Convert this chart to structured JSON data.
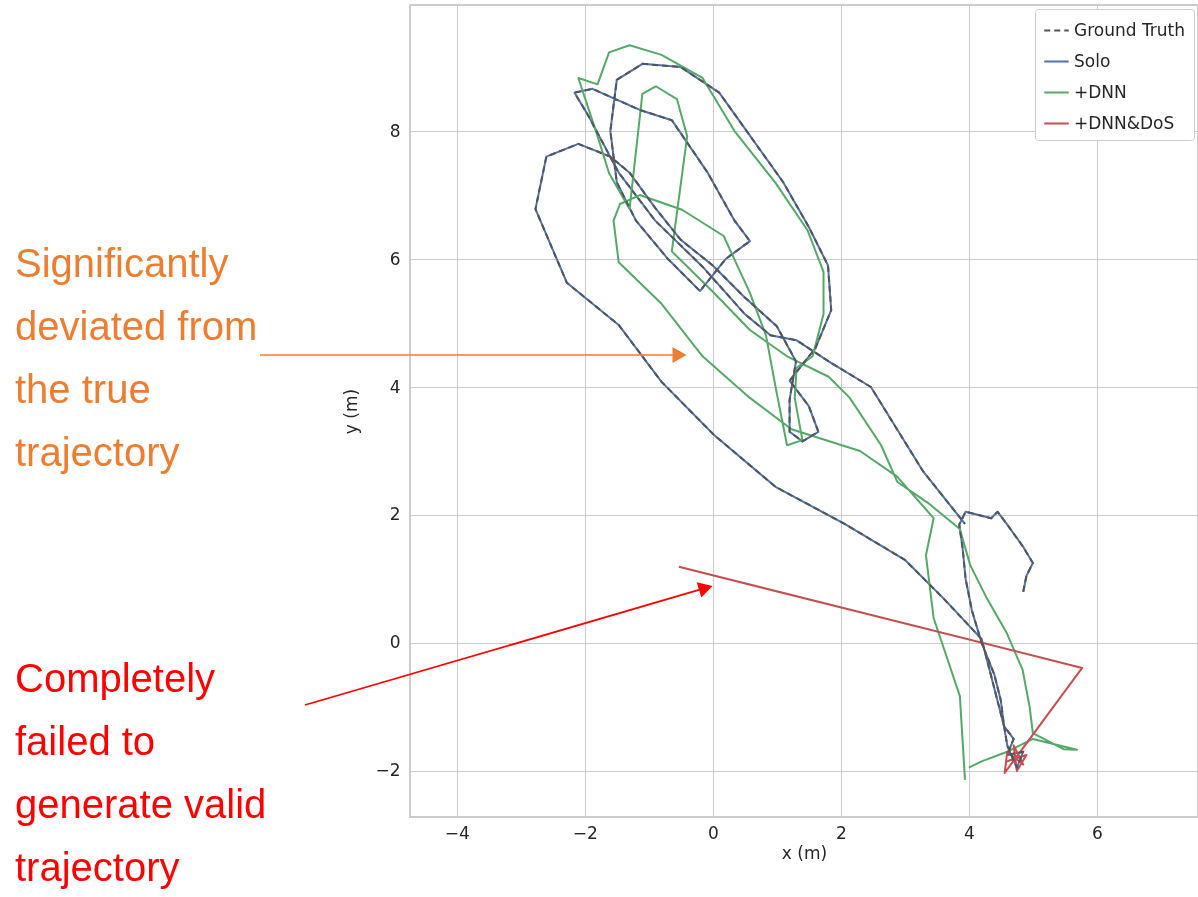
{
  "chart_data": {
    "type": "line",
    "xlabel": "x (m)",
    "ylabel": "y (m)",
    "xlim": [
      -4.73,
      7.58
    ],
    "ylim": [
      -2.72,
      9.97
    ],
    "xticks": [
      {
        "value": -4,
        "label": "−4"
      },
      {
        "value": -2,
        "label": "−2"
      },
      0,
      2,
      4,
      6
    ],
    "yticks": [
      {
        "value": -2,
        "label": "−2"
      },
      0,
      2,
      4,
      6,
      8
    ],
    "grid": true,
    "legend": "top right",
    "annotations": [
      {
        "text": "Significantly deviated from the true trajectory",
        "x": -0.52,
        "y": 4.5
      },
      {
        "text": "Completely failed to generate valid trajectory",
        "x": -0.11,
        "y": 0.86
      }
    ],
    "series": [
      {
        "name": "Ground Truth",
        "color": "#555555",
        "line_style": "dashed",
        "x": [
          4.85,
          4.9,
          5.0,
          4.85,
          4.6,
          4.45,
          4.35,
          4.15,
          3.95,
          3.85,
          3.9,
          3.95,
          4.05,
          4.2,
          4.4,
          4.5,
          4.55,
          4.6,
          4.75,
          4.85,
          4.6,
          4.7,
          4.55,
          4.2,
          3.6,
          3.0,
          2.06,
          0.98,
          0.02,
          -0.8,
          -1.47,
          -2.28,
          -2.77,
          -2.6,
          -2.1,
          -1.6,
          -1.3,
          -0.9,
          -0.5,
          0.0,
          0.5,
          1.0,
          1.3,
          1.2,
          1.2,
          1.4,
          1.65,
          1.5,
          1.2,
          1.6,
          1.85,
          1.8,
          1.5,
          1.1,
          0.6,
          0.1,
          -0.5,
          -1.1,
          -1.5,
          -1.6,
          -1.5,
          -1.2,
          -0.7,
          -0.2,
          0.2,
          0.58,
          0.34,
          -0.08,
          -0.64,
          -1.14,
          -1.88,
          -2.16,
          -1.95,
          -1.47,
          -0.9,
          -0.16,
          0.5,
          0.9,
          1.31,
          1.81,
          2.47,
          3.28,
          3.94
        ],
        "values": [
          0.8,
          1.05,
          1.25,
          1.5,
          1.85,
          2.05,
          1.95,
          2.0,
          2.05,
          1.85,
          1.5,
          1.0,
          0.5,
          0.0,
          -0.5,
          -0.9,
          -1.3,
          -1.6,
          -1.95,
          -1.7,
          -1.75,
          -1.5,
          -1.3,
          0.06,
          0.7,
          1.3,
          1.86,
          2.44,
          3.25,
          4.08,
          4.97,
          5.63,
          6.78,
          7.6,
          7.8,
          7.6,
          7.35,
          6.8,
          6.3,
          5.9,
          5.4,
          4.95,
          4.4,
          3.8,
          3.3,
          3.15,
          3.3,
          3.7,
          4.1,
          4.6,
          5.2,
          5.9,
          6.5,
          7.2,
          7.9,
          8.6,
          9.0,
          9.05,
          8.8,
          8.0,
          7.2,
          6.6,
          6.0,
          5.5,
          6.0,
          6.28,
          6.6,
          7.35,
          8.17,
          8.33,
          8.66,
          8.6,
          8.25,
          7.35,
          6.6,
          5.88,
          5.14,
          4.81,
          4.73,
          4.4,
          4.0,
          2.69,
          1.86
        ]
      },
      {
        "name": "Solo",
        "color": "#4c72b0",
        "line_style": "solid",
        "x": [
          4.85,
          4.9,
          5.0,
          4.85,
          4.6,
          4.45,
          4.35,
          4.15,
          3.95,
          3.85,
          3.9,
          3.95,
          4.05,
          4.2,
          4.4,
          4.5,
          4.55,
          4.6,
          4.75,
          4.85,
          4.6,
          4.7,
          4.55,
          4.2,
          3.6,
          3.0,
          2.06,
          0.98,
          0.02,
          -0.8,
          -1.47,
          -2.28,
          -2.77,
          -2.6,
          -2.1,
          -1.6,
          -1.3,
          -0.9,
          -0.5,
          0.0,
          0.5,
          1.0,
          1.3,
          1.2,
          1.2,
          1.4,
          1.65,
          1.5,
          1.2,
          1.6,
          1.85,
          1.8,
          1.5,
          1.1,
          0.6,
          0.1,
          -0.5,
          -1.1,
          -1.5,
          -1.6,
          -1.5,
          -1.2,
          -0.7,
          -0.2,
          0.2,
          0.58,
          0.34,
          -0.08,
          -0.64,
          -1.14,
          -1.88,
          -2.16,
          -1.95,
          -1.47,
          -0.9,
          -0.16,
          0.5,
          0.9,
          1.31,
          1.81,
          2.47,
          3.28,
          3.94
        ],
        "values": [
          0.8,
          1.05,
          1.25,
          1.5,
          1.85,
          2.05,
          1.95,
          2.0,
          2.05,
          1.85,
          1.5,
          1.0,
          0.5,
          0.0,
          -0.5,
          -0.9,
          -1.3,
          -1.6,
          -1.95,
          -1.7,
          -1.75,
          -1.5,
          -1.3,
          0.06,
          0.7,
          1.3,
          1.86,
          2.44,
          3.25,
          4.08,
          4.97,
          5.63,
          6.78,
          7.6,
          7.8,
          7.6,
          7.35,
          6.8,
          6.3,
          5.9,
          5.4,
          4.95,
          4.4,
          3.8,
          3.3,
          3.15,
          3.3,
          3.7,
          4.1,
          4.6,
          5.2,
          5.9,
          6.5,
          7.2,
          7.9,
          8.6,
          9.0,
          9.05,
          8.8,
          8.0,
          7.2,
          6.6,
          6.0,
          5.5,
          6.0,
          6.28,
          6.6,
          7.35,
          8.17,
          8.33,
          8.66,
          8.6,
          8.25,
          7.35,
          6.6,
          5.88,
          5.14,
          4.81,
          4.73,
          4.4,
          4.0,
          2.69,
          1.86
        ]
      },
      {
        "name": "+DNN",
        "color": "#55a868",
        "line_style": "solid",
        "x": [
          3.94,
          3.86,
          3.45,
          3.33,
          3.45,
          2.88,
          2.3,
          1.23,
          0.58,
          -0.16,
          -0.8,
          -1.47,
          -1.55,
          -1.45,
          -1.14,
          -0.48,
          0.17,
          0.58,
          0.83,
          1.0,
          1.16,
          1.4,
          1.28,
          1.31,
          1.56,
          1.73,
          1.73,
          1.48,
          0.98,
          0.34,
          -0.16,
          -0.8,
          -1.3,
          -1.62,
          -1.8,
          -2.1,
          -1.8,
          -1.62,
          -1.3,
          -1.1,
          -0.89,
          -0.56,
          -0.4,
          -0.64,
          0.02,
          0.58,
          1.16,
          1.81,
          2.14,
          2.63,
          2.88,
          3.36,
          3.86,
          4.02,
          4.27,
          4.59,
          4.84,
          4.95,
          5.0,
          5.48,
          5.69,
          5.0,
          4.6,
          4.2,
          4.0
        ],
        "values": [
          -2.14,
          -0.83,
          0.39,
          1.37,
          1.95,
          2.6,
          3.0,
          3.34,
          3.83,
          4.48,
          5.3,
          5.95,
          6.6,
          6.86,
          7.0,
          6.77,
          6.36,
          5.47,
          4.81,
          3.9,
          3.09,
          3.17,
          3.83,
          4.3,
          4.48,
          5.14,
          5.8,
          6.45,
          7.19,
          8.0,
          8.83,
          9.19,
          9.34,
          9.23,
          8.73,
          8.83,
          7.92,
          7.34,
          6.78,
          8.58,
          8.7,
          8.5,
          7.92,
          6.12,
          5.47,
          4.89,
          4.48,
          4.16,
          3.83,
          3.09,
          2.52,
          2.19,
          1.78,
          1.22,
          0.72,
          0.16,
          -0.42,
          -1.0,
          -1.41,
          -1.66,
          -1.67,
          -1.5,
          -1.7,
          -1.85,
          -1.95
        ]
      },
      {
        "name": "+DNN&DoS",
        "color": "#c44e52",
        "line_style": "solid",
        "x": [
          -0.53,
          5.77,
          4.56,
          4.6,
          4.85,
          4.7,
          4.75,
          4.9,
          4.6,
          4.72
        ],
        "values": [
          1.19,
          -0.39,
          -2.03,
          -1.7,
          -1.9,
          -1.6,
          -2.0,
          -1.75,
          -1.85,
          -1.8
        ]
      }
    ]
  }
}
